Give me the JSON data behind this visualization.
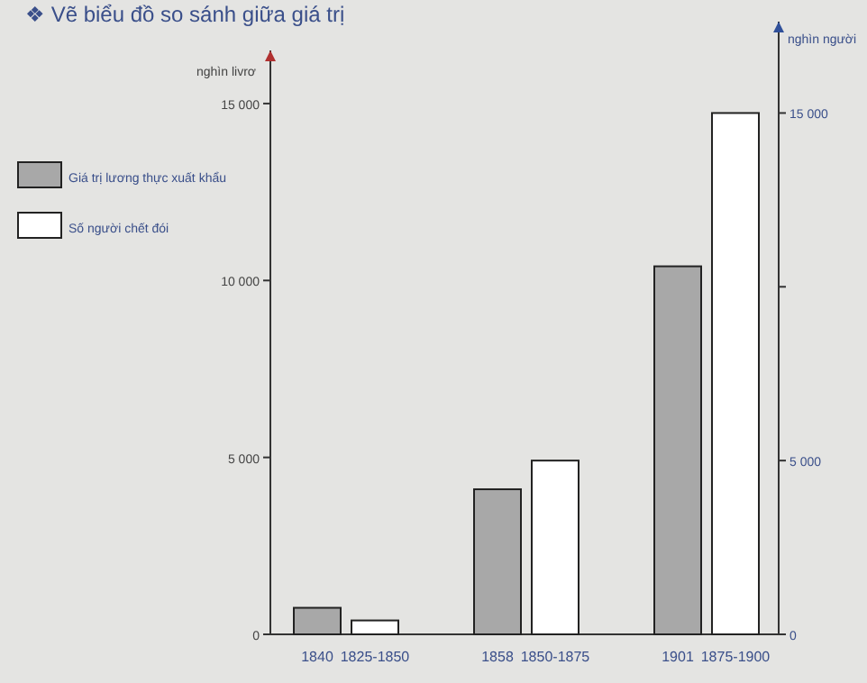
{
  "chart_data": {
    "type": "bar",
    "title": "❖ Vẽ biểu đồ so sánh giữa giá trị",
    "ylabel": "nghìn livrơ",
    "y2label": "nghìn người",
    "categories": [
      "1840",
      "1825-1850",
      "1858",
      "1850-1875",
      "1901",
      "1875-1900"
    ],
    "series": [
      {
        "name": "Giá trị lương thực xuất khẩu",
        "color": "#a8a8a8",
        "values": [
          750,
          null,
          4100,
          null,
          10400,
          null
        ]
      },
      {
        "name": "Số người chết đói",
        "color": "#ffffff",
        "axis": "y2",
        "values": [
          null,
          400,
          null,
          5000,
          null,
          15000
        ]
      }
    ],
    "ylim": [
      0,
      16500
    ],
    "yticks": [
      0,
      {
        "value": 5000,
        "label": "5 000"
      },
      {
        "value": 10000,
        "label": "10 000"
      },
      {
        "value": 15000,
        "label": "15 000"
      }
    ],
    "y2lim": [
      0,
      16800
    ],
    "y2ticks": [
      0,
      {
        "value": 5000,
        "label": "5 000"
      },
      {
        "value": 10000,
        "label": null
      },
      {
        "value": 15000,
        "label": "15 000"
      }
    ],
    "legend": "top left",
    "grid": false
  }
}
